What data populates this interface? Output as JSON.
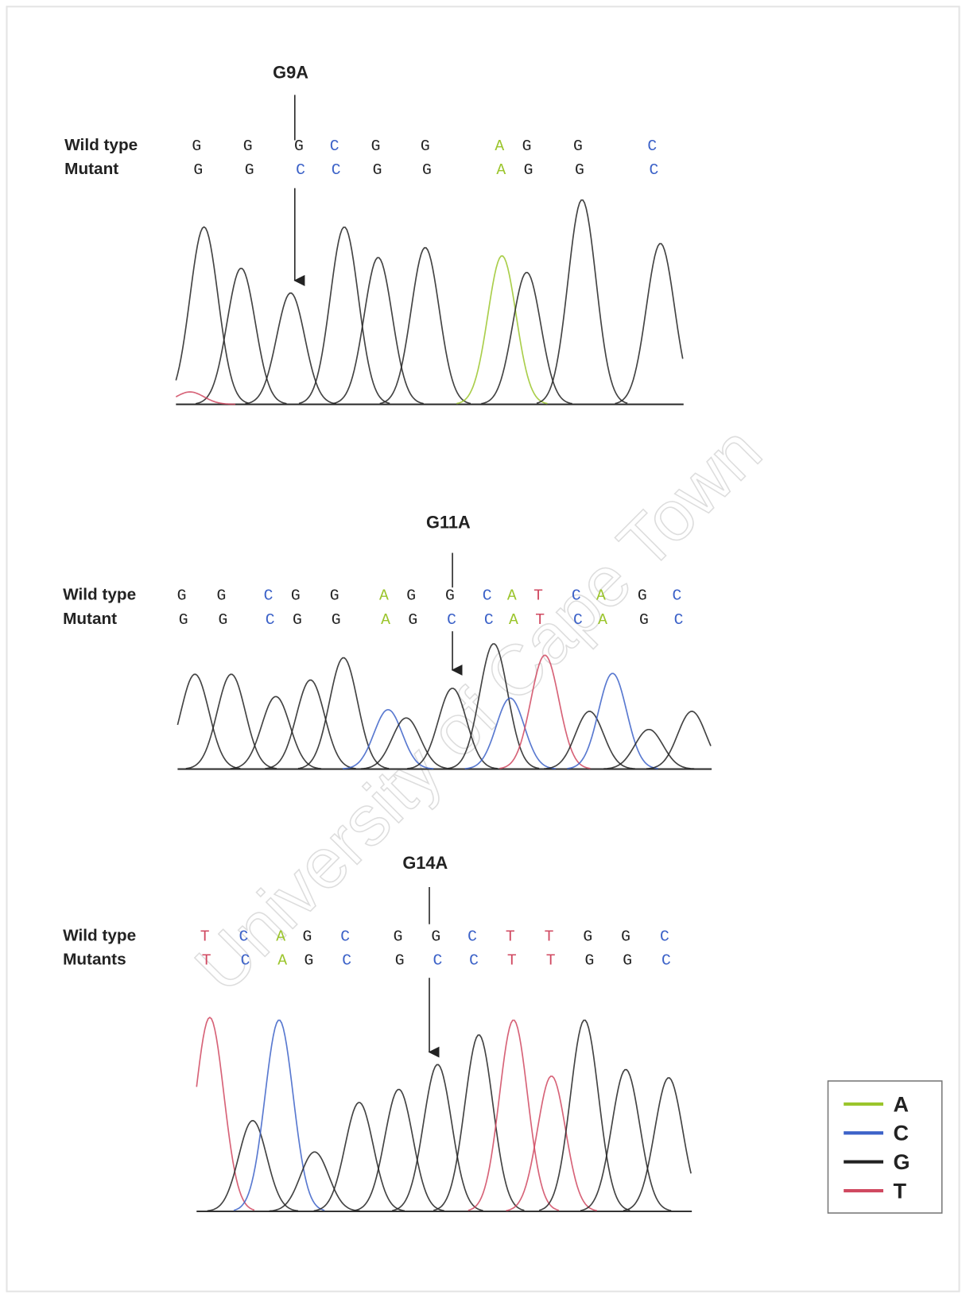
{
  "panels": [
    {
      "mutation": "G9A",
      "wild_label": "Wild type",
      "mutant_label": "Mutant",
      "wild": [
        "G",
        "G",
        "G",
        "C",
        "G",
        "G",
        "A",
        "G",
        "G",
        "C"
      ],
      "mutant": [
        "G",
        "G",
        "C",
        "C",
        "G",
        "G",
        "A",
        "G",
        "G",
        "C"
      ]
    },
    {
      "mutation": "G11A",
      "wild_label": "Wild type",
      "mutant_label": "Mutant",
      "wild": [
        "G",
        "G",
        "C",
        "G",
        "G",
        "A",
        "G",
        "G",
        "C",
        "A",
        "T",
        "C",
        "A",
        "G",
        "C"
      ],
      "mutant": [
        "G",
        "G",
        "C",
        "G",
        "G",
        "A",
        "G",
        "C",
        "C",
        "A",
        "T",
        "C",
        "A",
        "G",
        "C"
      ]
    },
    {
      "mutation": "G14A",
      "wild_label": "Wild type",
      "mutant_label": "Mutants",
      "wild": [
        "T",
        "C",
        "A",
        "G",
        "C",
        "G",
        "G",
        "C",
        "T",
        "T",
        "G",
        "G",
        "C"
      ],
      "mutant": [
        "T",
        "C",
        "A",
        "G",
        "C",
        "G",
        "C",
        "C",
        "T",
        "T",
        "G",
        "G",
        "C"
      ]
    }
  ],
  "legend": [
    {
      "name": "A",
      "color": "#9bc52c"
    },
    {
      "name": "C",
      "color": "#3c62c8"
    },
    {
      "name": "G",
      "color": "#222222"
    },
    {
      "name": "T",
      "color": "#d04860"
    }
  ],
  "watermark": "University of Cape Town"
}
